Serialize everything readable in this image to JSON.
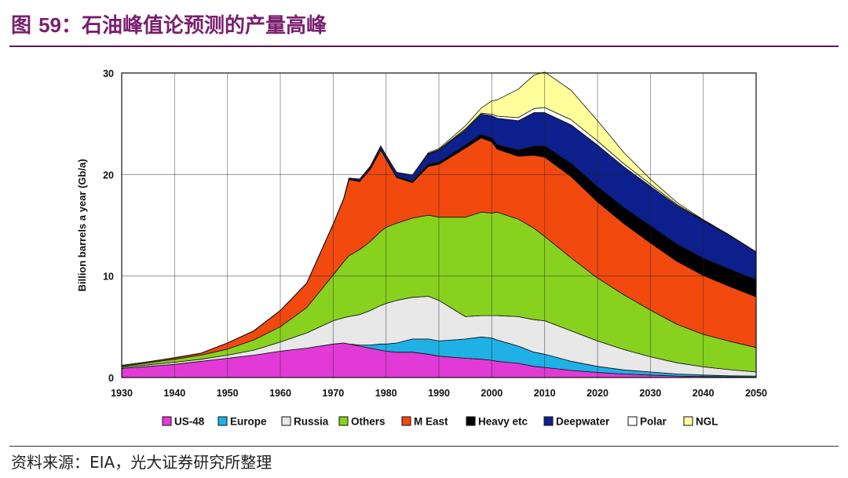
{
  "figure": {
    "title_prefix": "图 ",
    "title_number": "59",
    "title_text": "：石油峰值论预测的产量高峰",
    "source": "资料来源：EIA，光大证券研究所整理"
  },
  "colors": {
    "title": "#7a1f6e",
    "US-48": "#e23ad6",
    "Europe": "#1fb0e6",
    "Russia": "#e8e8e8",
    "Others": "#88d21f",
    "M East": "#f2490f",
    "Heavy etc": "#000000",
    "Deepwater": "#0c1f8c",
    "Polar": "#ffffff",
    "NGL": "#ffff9c"
  },
  "chart_data": {
    "type": "area",
    "stacked": true,
    "title": "",
    "xlabel": "",
    "ylabel": "Billion barrels a year (Gb/a)",
    "xlim": [
      1930,
      2050
    ],
    "ylim": [
      0,
      30
    ],
    "xticks": [
      1930,
      1940,
      1950,
      1960,
      1970,
      1980,
      1990,
      2000,
      2010,
      2020,
      2030,
      2040,
      2050
    ],
    "yticks": [
      0,
      10,
      20,
      30
    ],
    "grid": true,
    "legend_position": "bottom",
    "x": [
      1930,
      1935,
      1940,
      1945,
      1950,
      1955,
      1960,
      1965,
      1970,
      1972,
      1973,
      1975,
      1977,
      1979,
      1980,
      1982,
      1985,
      1988,
      1990,
      1995,
      1998,
      2000,
      2001,
      2005,
      2008,
      2010,
      2015,
      2020,
      2025,
      2030,
      2035,
      2040,
      2045,
      2050
    ],
    "series": [
      {
        "name": "US-48",
        "values": [
          0.9,
          1.1,
          1.3,
          1.6,
          1.9,
          2.2,
          2.6,
          2.9,
          3.3,
          3.4,
          3.3,
          3.1,
          2.9,
          2.7,
          2.6,
          2.5,
          2.5,
          2.3,
          2.1,
          1.9,
          1.8,
          1.7,
          1.6,
          1.4,
          1.1,
          1.0,
          0.7,
          0.5,
          0.35,
          0.25,
          0.15,
          0.1,
          0.07,
          0.05
        ]
      },
      {
        "name": "Europe",
        "values": [
          0,
          0,
          0,
          0,
          0,
          0,
          0,
          0,
          0,
          0,
          0,
          0.1,
          0.3,
          0.6,
          0.7,
          0.9,
          1.3,
          1.5,
          1.5,
          1.9,
          2.2,
          2.2,
          2.1,
          1.7,
          1.4,
          1.3,
          0.9,
          0.6,
          0.4,
          0.3,
          0.2,
          0.15,
          0.1,
          0.1
        ]
      },
      {
        "name": "Russia",
        "values": [
          0.1,
          0.15,
          0.2,
          0.2,
          0.3,
          0.5,
          0.9,
          1.5,
          2.3,
          2.5,
          2.7,
          3.0,
          3.4,
          3.8,
          4.0,
          4.2,
          4.1,
          4.2,
          4.0,
          2.2,
          2.1,
          2.2,
          2.4,
          2.9,
          3.2,
          3.3,
          3.0,
          2.5,
          2.0,
          1.5,
          1.1,
          0.8,
          0.6,
          0.4
        ]
      },
      {
        "name": "Others",
        "values": [
          0.1,
          0.2,
          0.3,
          0.4,
          0.6,
          1.0,
          1.5,
          2.5,
          4.5,
          5.5,
          6.0,
          6.4,
          6.8,
          7.3,
          7.5,
          7.6,
          7.8,
          8.0,
          8.2,
          9.8,
          10.2,
          10.1,
          10.2,
          9.6,
          9.0,
          8.3,
          7.2,
          6.2,
          5.4,
          4.6,
          3.8,
          3.2,
          2.8,
          2.4
        ]
      },
      {
        "name": "M East",
        "values": [
          0.1,
          0.1,
          0.15,
          0.2,
          0.6,
          0.9,
          1.6,
          2.4,
          5.0,
          6.2,
          7.5,
          6.7,
          7.1,
          8.0,
          6.7,
          4.5,
          3.5,
          4.8,
          5.2,
          6.8,
          7.3,
          7.0,
          6.2,
          6.2,
          7.2,
          7.8,
          8.0,
          7.5,
          7.0,
          6.6,
          6.2,
          5.8,
          5.4,
          5.0
        ]
      },
      {
        "name": "Heavy etc",
        "values": [
          0,
          0,
          0,
          0,
          0,
          0,
          0,
          0,
          0,
          0,
          0.05,
          0.05,
          0.1,
          0.1,
          0.1,
          0.1,
          0.15,
          0.2,
          0.2,
          0.3,
          0.35,
          0.4,
          0.45,
          0.6,
          0.9,
          1.1,
          1.3,
          1.5,
          1.6,
          1.7,
          1.7,
          1.7,
          1.7,
          1.7
        ]
      },
      {
        "name": "Deepwater",
        "values": [
          0,
          0,
          0,
          0,
          0,
          0,
          0,
          0,
          0,
          0.05,
          0.1,
          0.2,
          0.2,
          0.3,
          0.3,
          0.4,
          0.6,
          1.0,
          1.2,
          1.5,
          2.0,
          2.2,
          2.6,
          2.9,
          3.3,
          3.3,
          3.8,
          4.1,
          4.0,
          3.9,
          3.8,
          3.7,
          3.3,
          2.7
        ]
      },
      {
        "name": "Polar",
        "values": [
          0,
          0,
          0,
          0,
          0,
          0,
          0,
          0,
          0,
          0,
          0,
          0,
          0,
          0,
          0,
          0,
          0,
          0.05,
          0.05,
          0.1,
          0.1,
          0.15,
          0.2,
          0.3,
          0.4,
          0.5,
          0.5,
          0.4,
          0.3,
          0.2,
          0.1,
          0.05,
          0.03,
          0.02
        ]
      },
      {
        "name": "NGL",
        "values": [
          0,
          0,
          0,
          0,
          0,
          0,
          0,
          0,
          0,
          0,
          0,
          0,
          0,
          0,
          0,
          0,
          0,
          0.1,
          0.1,
          0.3,
          0.5,
          1.3,
          1.6,
          2.8,
          3.3,
          3.5,
          2.9,
          2.0,
          1.1,
          0.5,
          0.2,
          0.05,
          0.03,
          0.01
        ]
      }
    ]
  }
}
